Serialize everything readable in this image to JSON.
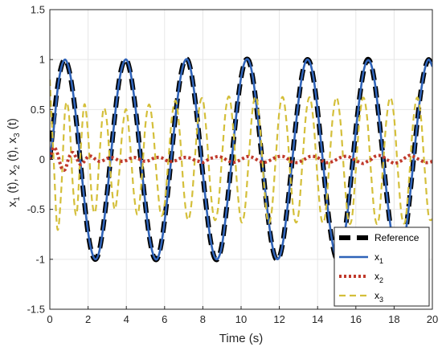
{
  "chart_data": {
    "type": "line",
    "title": "",
    "xlabel": "Time (s)",
    "ylabel_parts": [
      "x",
      "1",
      " (t), x",
      "2",
      " (t), x",
      "3",
      " (t)"
    ],
    "xlim": [
      0,
      20
    ],
    "ylim": [
      -1.5,
      1.5
    ],
    "xticks": [
      "0",
      "2",
      "4",
      "6",
      "8",
      "10",
      "12",
      "14",
      "16",
      "18",
      "20"
    ],
    "yticks": [
      "-1.5",
      "-1",
      "-0.5",
      "0",
      "0.5",
      "1",
      "1.5"
    ],
    "grid": true,
    "legend_position": "bottom-right",
    "t": [
      0,
      0.2,
      0.4,
      0.6,
      0.8,
      1.0,
      1.2,
      1.4,
      1.6,
      1.8,
      2.0,
      2.2,
      2.4,
      2.6,
      2.8,
      3.0,
      3.2,
      3.4,
      3.6,
      3.8,
      4.0,
      4.2,
      4.4,
      4.6,
      4.8,
      5.0,
      5.2,
      5.4,
      5.6,
      5.8,
      6.0,
      6.2,
      6.4,
      6.6,
      6.8,
      7.0,
      7.2,
      7.4,
      7.6,
      7.8,
      8.0,
      8.2,
      8.4,
      8.6,
      8.8,
      9.0,
      9.2,
      9.4,
      9.6,
      9.8,
      10.0,
      10.2,
      10.4,
      10.6,
      10.8,
      11.0,
      11.2,
      11.4,
      11.6,
      11.8,
      12.0,
      12.2,
      12.4,
      12.6,
      12.8,
      13.0,
      13.2,
      13.4,
      13.6,
      13.8,
      14.0,
      14.2,
      14.4,
      14.6,
      14.8,
      15.0,
      15.2,
      15.4,
      15.6,
      15.8,
      16.0,
      16.2,
      16.4,
      16.6,
      16.8,
      17.0,
      17.2,
      17.4,
      17.6,
      17.8,
      18.0,
      18.2,
      18.4,
      18.6,
      18.8,
      19.0,
      19.2,
      19.4,
      19.6,
      19.8,
      20.0
    ],
    "series": [
      {
        "name": "Reference",
        "color": "#000000",
        "style": "dashed-thick",
        "values": [
          0.0,
          0.39,
          0.72,
          0.93,
          1.0,
          0.9,
          0.68,
          0.36,
          -0.03,
          -0.41,
          -0.74,
          -0.94,
          -1.0,
          -0.9,
          -0.66,
          -0.33,
          0.06,
          0.44,
          0.76,
          0.95,
          1.0,
          0.88,
          0.63,
          0.3,
          -0.09,
          -0.46,
          -0.77,
          -0.96,
          -1.0,
          -0.87,
          -0.61,
          -0.27,
          0.12,
          0.49,
          0.79,
          0.97,
          1.0,
          0.86,
          0.59,
          0.24,
          -0.15,
          -0.51,
          -0.81,
          -0.98,
          -0.99,
          -0.85,
          -0.56,
          -0.21,
          0.18,
          0.54,
          0.82,
          0.98,
          0.99,
          0.83,
          0.54,
          0.18,
          -0.21,
          -0.56,
          -0.84,
          -0.99,
          -0.98,
          -0.81,
          -0.51,
          -0.15,
          0.24,
          0.59,
          0.86,
          0.99,
          0.97,
          0.79,
          0.49,
          0.12,
          -0.27,
          -0.61,
          -0.87,
          -1.0,
          -0.96,
          -0.77,
          -0.46,
          -0.09,
          0.3,
          0.63,
          0.88,
          1.0,
          0.95,
          0.75,
          0.43,
          0.06,
          -0.33,
          -0.66,
          -0.9,
          -1.0,
          -0.94,
          -0.74,
          -0.41,
          -0.03,
          0.36,
          0.68,
          0.9,
          1.0,
          0.93
        ]
      },
      {
        "name": "x1",
        "label_parts": [
          "x",
          "1"
        ],
        "color": "#2f63b8",
        "style": "solid",
        "values": [
          0.0,
          0.3,
          0.69,
          0.92,
          1.0,
          0.91,
          0.69,
          0.37,
          -0.02,
          -0.4,
          -0.73,
          -0.93,
          -1.0,
          -0.91,
          -0.67,
          -0.34,
          0.05,
          0.43,
          0.75,
          0.94,
          1.0,
          0.89,
          0.64,
          0.31,
          -0.08,
          -0.45,
          -0.77,
          -0.95,
          -1.0,
          -0.88,
          -0.62,
          -0.28,
          0.11,
          0.48,
          0.78,
          0.96,
          1.0,
          0.87,
          0.6,
          0.25,
          -0.14,
          -0.5,
          -0.8,
          -0.97,
          -0.99,
          -0.86,
          -0.57,
          -0.22,
          0.17,
          0.53,
          0.82,
          0.98,
          0.99,
          0.84,
          0.55,
          0.19,
          -0.2,
          -0.55,
          -0.83,
          -0.98,
          -0.98,
          -0.82,
          -0.52,
          -0.16,
          0.23,
          0.58,
          0.85,
          0.99,
          0.97,
          0.8,
          0.5,
          0.13,
          -0.26,
          -0.6,
          -0.86,
          -0.99,
          -0.96,
          -0.78,
          -0.47,
          -0.1,
          0.29,
          0.62,
          0.88,
          0.99,
          0.95,
          0.76,
          0.44,
          0.07,
          -0.32,
          -0.65,
          -0.89,
          -1.0,
          -0.94,
          -0.74,
          -0.42,
          -0.04,
          0.35,
          0.67,
          0.9,
          1.0,
          0.93
        ]
      },
      {
        "name": "x2",
        "label_parts": [
          "x",
          "2"
        ],
        "color": "#c0392b",
        "style": "dotted-thick",
        "values": [
          0.0,
          0.12,
          0.06,
          -0.08,
          -0.1,
          0.02,
          0.07,
          0.01,
          -0.05,
          -0.02,
          0.03,
          0.03,
          0.0,
          -0.02,
          -0.01,
          0.01,
          0.02,
          0.01,
          -0.01,
          -0.02,
          -0.01,
          0.01,
          0.02,
          0.01,
          -0.01,
          -0.02,
          -0.01,
          0.01,
          0.02,
          0.02,
          0.0,
          -0.02,
          -0.02,
          -0.01,
          0.01,
          0.02,
          0.02,
          0.01,
          -0.01,
          -0.02,
          -0.03,
          -0.01,
          0.01,
          0.02,
          0.03,
          0.02,
          0.0,
          -0.02,
          -0.03,
          -0.02,
          0.0,
          0.02,
          0.03,
          0.02,
          0.0,
          -0.02,
          -0.03,
          -0.02,
          0.0,
          0.02,
          0.03,
          0.03,
          0.01,
          -0.02,
          -0.03,
          -0.03,
          -0.01,
          0.01,
          0.03,
          0.03,
          0.02,
          -0.01,
          -0.03,
          -0.03,
          -0.02,
          0.0,
          0.02,
          0.03,
          0.03,
          0.01,
          -0.01,
          -0.03,
          -0.04,
          -0.02,
          0.0,
          0.03,
          0.04,
          0.03,
          0.0,
          -0.02,
          -0.04,
          -0.03,
          -0.01,
          0.02,
          0.04,
          0.03,
          0.01,
          -0.01,
          -0.03,
          -0.03,
          -0.02
        ]
      },
      {
        "name": "x3",
        "label_parts": [
          "x",
          "3"
        ],
        "color": "#d4bf3a",
        "style": "dashed",
        "values": [
          0.8,
          0.0,
          -0.7,
          -0.3,
          0.5,
          0.45,
          -0.25,
          -0.55,
          0.05,
          0.55,
          0.25,
          -0.4,
          -0.5,
          0.05,
          0.5,
          0.35,
          -0.2,
          -0.5,
          -0.2,
          0.3,
          0.5,
          0.15,
          -0.35,
          -0.55,
          -0.2,
          0.35,
          0.55,
          0.3,
          -0.2,
          -0.55,
          -0.45,
          0.0,
          0.45,
          0.58,
          0.25,
          -0.3,
          -0.6,
          -0.45,
          0.05,
          0.5,
          0.6,
          0.25,
          -0.3,
          -0.6,
          -0.48,
          0.02,
          0.5,
          0.62,
          0.28,
          -0.28,
          -0.62,
          -0.5,
          0.0,
          0.5,
          0.62,
          0.3,
          -0.25,
          -0.62,
          -0.52,
          -0.02,
          0.48,
          0.62,
          0.32,
          -0.22,
          -0.6,
          -0.55,
          -0.05,
          0.46,
          0.62,
          0.35,
          -0.2,
          -0.6,
          -0.56,
          -0.08,
          0.44,
          0.62,
          0.37,
          -0.18,
          -0.6,
          -0.58,
          -0.1,
          0.42,
          0.62,
          0.4,
          -0.15,
          -0.58,
          -0.6,
          -0.12,
          0.4,
          0.62,
          0.42,
          -0.12,
          -0.57,
          -0.6,
          -0.15,
          0.38,
          0.62,
          0.43,
          -0.1,
          -0.56,
          -0.6
        ]
      }
    ]
  }
}
